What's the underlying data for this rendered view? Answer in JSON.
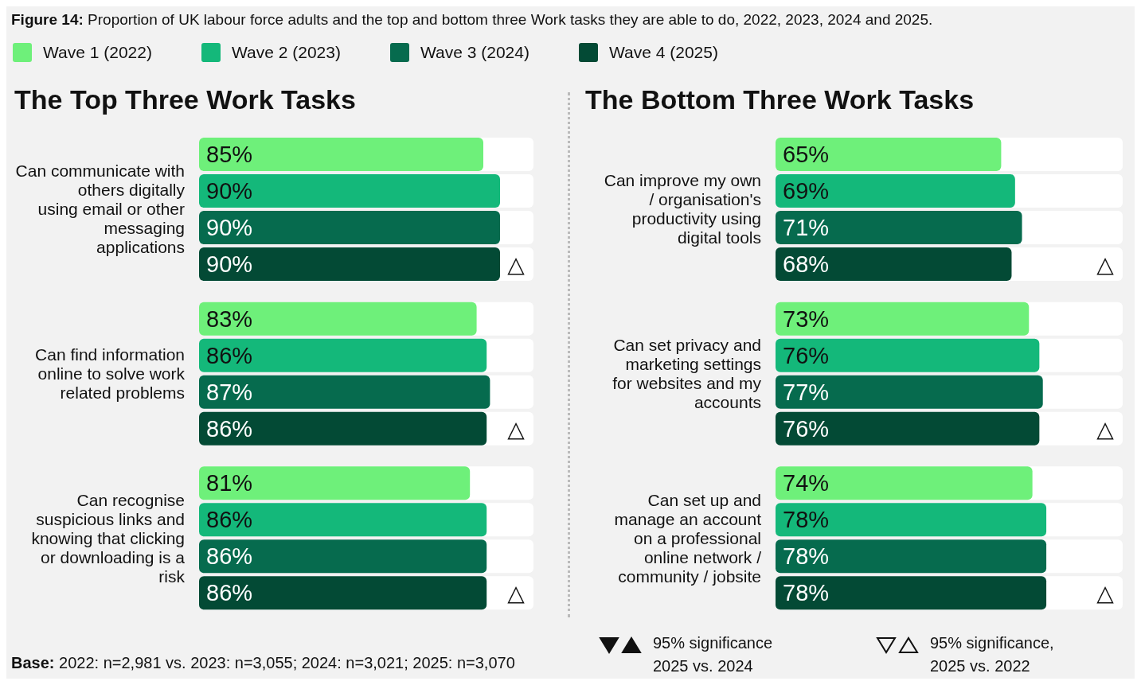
{
  "chart_data": [
    {
      "type": "bar",
      "orientation": "horizontal",
      "title": "The Top Three Work Tasks",
      "categories": [
        "Can communicate with others digitally using email or other messaging applications",
        "Can find information online to solve work related problems",
        "Can recognise suspicious links and knowing that clicking or downloading is a risk"
      ],
      "series": [
        {
          "name": "Wave 1 (2022)",
          "color": "#6ef07a",
          "values": [
            85,
            83,
            81
          ],
          "value_labels": [
            "85%",
            "83%",
            "81%"
          ]
        },
        {
          "name": "Wave 2 (2023)",
          "color": "#14b87a",
          "values": [
            90,
            86,
            86
          ],
          "value_labels": [
            "90%",
            "86%",
            "86%"
          ]
        },
        {
          "name": "Wave 3 (2024)",
          "color": "#066b4e",
          "values": [
            90,
            87,
            86
          ],
          "value_labels": [
            "90%",
            "87%",
            "86%"
          ]
        },
        {
          "name": "Wave 4 (2025)",
          "color": "#034a35",
          "values": [
            90,
            86,
            86
          ],
          "value_labels": [
            "90%",
            "86%",
            "86%"
          ]
        }
      ],
      "xlim": [
        0,
        100
      ],
      "tick_labels": "y",
      "legend": "top",
      "grid": false,
      "annotations": [
        "Figure 14: Proportion of UK labour force adults and the top and bottom three Work tasks they are able to do, 2022, 2023, 2024 and 2025.",
        "Base: 2022: n=2,981 vs. 2023: n=3,055; 2024: n=3,021; 2025: n=3,070",
        "△",
        "△",
        "△"
      ]
    },
    {
      "type": "bar",
      "orientation": "horizontal",
      "title": "The Bottom Three Work Tasks",
      "categories": [
        "Can improve my own / organisation's productivity using digital tools",
        "Can set privacy and marketing settings for websites and my accounts",
        "Can set up and manage an account on a professional online network / community / jobsite"
      ],
      "series": [
        {
          "color": "#6ef07a",
          "values": [
            65,
            73,
            74
          ],
          "value_labels": [
            "65%",
            "73%",
            "74%"
          ]
        },
        {
          "color": "#14b87a",
          "values": [
            69,
            76,
            78
          ],
          "value_labels": [
            "69%",
            "76%",
            "78%"
          ]
        },
        {
          "color": "#066b4e",
          "values": [
            71,
            77,
            78
          ],
          "value_labels": [
            "71%",
            "77%",
            "78%"
          ]
        },
        {
          "color": "#034a35",
          "values": [
            68,
            76,
            78
          ],
          "value_labels": [
            "68%",
            "76%",
            "78%"
          ]
        }
      ],
      "xlim": [
        0,
        100
      ],
      "tick_labels": "y",
      "grid": false,
      "annotations": [
        "95% significance 2025 vs. 2024",
        "95% significance, 2025 vs. 2022",
        "△",
        "△",
        "△"
      ]
    }
  ]
}
